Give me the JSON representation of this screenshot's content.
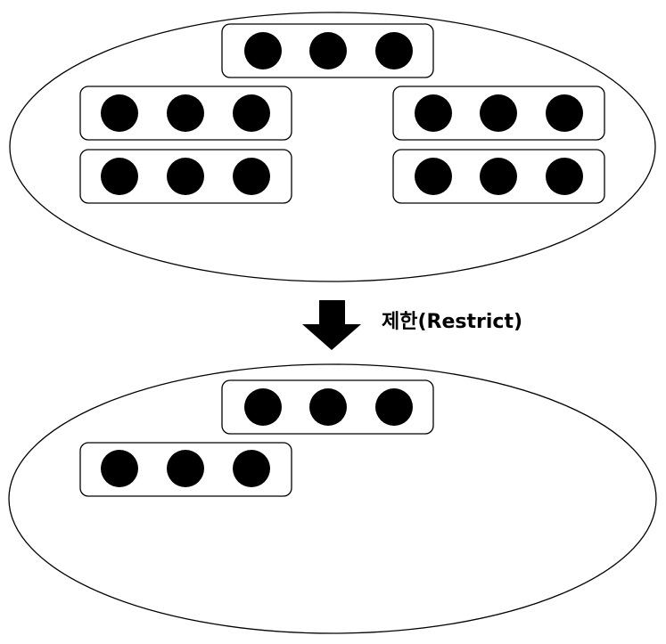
{
  "diagram": {
    "type": "relational-restrict",
    "operation_label": "제한(Restrict)",
    "element_color": "#000000",
    "before_set": {
      "tuple_count": 5,
      "tuples": [
        {
          "elements": 3
        },
        {
          "elements": 3
        },
        {
          "elements": 3
        },
        {
          "elements": 3
        },
        {
          "elements": 3
        }
      ]
    },
    "after_set": {
      "tuple_count": 2,
      "tuples": [
        {
          "elements": 3
        },
        {
          "elements": 3
        }
      ]
    },
    "arrow_icon": "down-arrow-icon"
  }
}
